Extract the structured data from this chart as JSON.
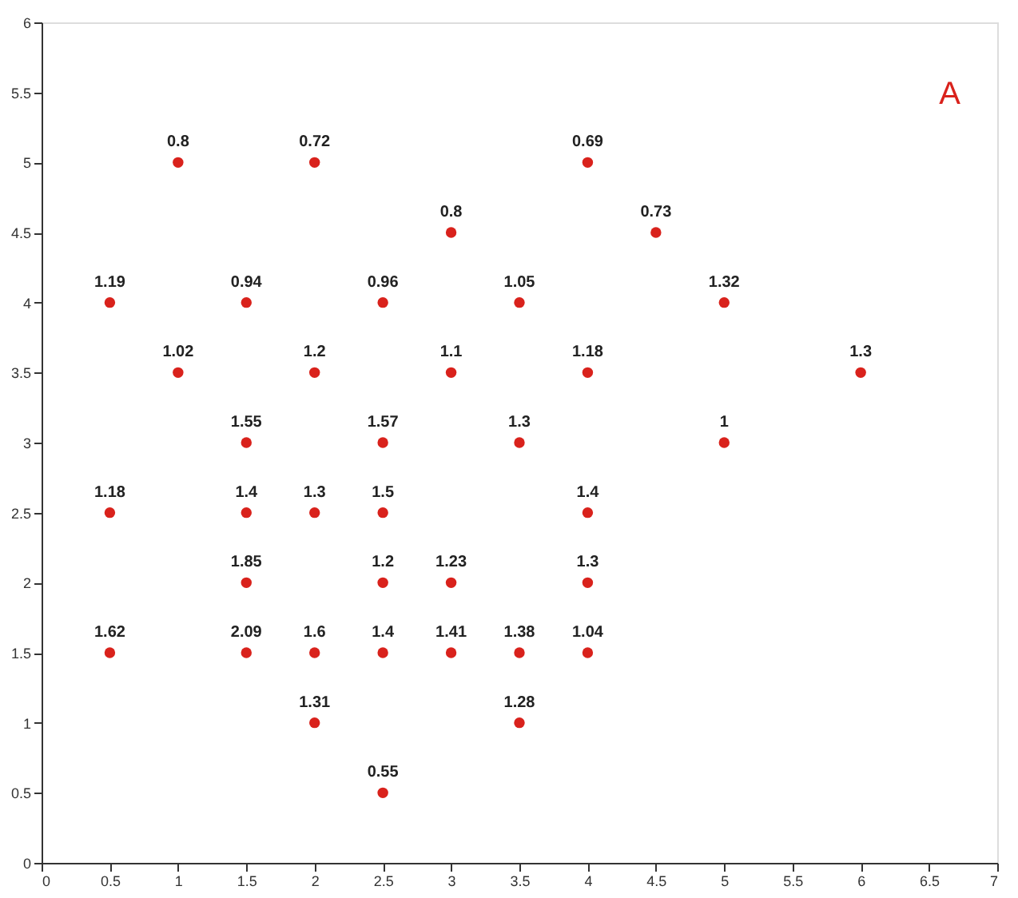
{
  "chart_data": {
    "type": "scatter",
    "x": [
      1,
      2,
      4,
      3,
      4.5,
      0.5,
      1.5,
      2.5,
      3.5,
      5,
      1,
      2,
      3,
      4,
      6,
      1.5,
      2.5,
      3.5,
      5,
      0.5,
      1.5,
      2,
      2.5,
      4,
      1.5,
      2.5,
      3,
      4,
      0.5,
      1.5,
      2,
      2.5,
      3,
      3.5,
      4,
      2,
      3.5,
      2.5
    ],
    "series": [
      {
        "color": "#d9221c",
        "values": [
          5,
          5,
          5,
          4.5,
          4.5,
          4,
          4,
          4,
          4,
          4,
          3.5,
          3.5,
          3.5,
          3.5,
          3.5,
          3,
          3,
          3,
          3,
          2.5,
          2.5,
          2.5,
          2.5,
          2.5,
          2,
          2,
          2,
          2,
          1.5,
          1.5,
          1.5,
          1.5,
          1.5,
          1.5,
          1.5,
          1,
          1,
          0.5
        ]
      }
    ],
    "xlim": [
      0,
      7
    ],
    "xticks": [
      0,
      0.5,
      1,
      1.5,
      2,
      2.5,
      3,
      3.5,
      4,
      4.5,
      5,
      5.5,
      6,
      6.5,
      7
    ],
    "ylim": [
      0,
      6
    ],
    "yticks": [
      0,
      0.5,
      1,
      1.5,
      2,
      2.5,
      3,
      3.5,
      4,
      4.5,
      5,
      5.5,
      6
    ],
    "grid": false,
    "marker": "circle",
    "annotations": [
      "A",
      {
        "text": "0.8",
        "x": 1,
        "y": 5
      },
      {
        "text": "0.72",
        "x": 2,
        "y": 5
      },
      {
        "text": "0.69",
        "x": 4,
        "y": 5
      },
      {
        "text": "0.8",
        "x": 3,
        "y": 4.5
      },
      {
        "text": "0.73",
        "x": 4.5,
        "y": 4.5
      },
      {
        "text": "1.19",
        "x": 0.5,
        "y": 4
      },
      {
        "text": "0.94",
        "x": 1.5,
        "y": 4
      },
      {
        "text": "0.96",
        "x": 2.5,
        "y": 4
      },
      {
        "text": "1.05",
        "x": 3.5,
        "y": 4
      },
      {
        "text": "1.32",
        "x": 5,
        "y": 4
      },
      {
        "text": "1.02",
        "x": 1,
        "y": 3.5
      },
      {
        "text": "1.2",
        "x": 2,
        "y": 3.5
      },
      {
        "text": "1.1",
        "x": 3,
        "y": 3.5
      },
      {
        "text": "1.18",
        "x": 4,
        "y": 3.5
      },
      {
        "text": "1.3",
        "x": 6,
        "y": 3.5
      },
      {
        "text": "1.55",
        "x": 1.5,
        "y": 3
      },
      {
        "text": "1.57",
        "x": 2.5,
        "y": 3
      },
      {
        "text": "1.3",
        "x": 3.5,
        "y": 3
      },
      {
        "text": "1",
        "x": 5,
        "y": 3
      },
      {
        "text": "1.18",
        "x": 0.5,
        "y": 2.5
      },
      {
        "text": "1.4",
        "x": 1.5,
        "y": 2.5
      },
      {
        "text": "1.3",
        "x": 2,
        "y": 2.5
      },
      {
        "text": "1.5",
        "x": 2.5,
        "y": 2.5
      },
      {
        "text": "1.4",
        "x": 4,
        "y": 2.5
      },
      {
        "text": "1.85",
        "x": 1.5,
        "y": 2
      },
      {
        "text": "1.2",
        "x": 2.5,
        "y": 2
      },
      {
        "text": "1.23",
        "x": 3,
        "y": 2
      },
      {
        "text": "1.3",
        "x": 4,
        "y": 2
      },
      {
        "text": "1.62",
        "x": 0.5,
        "y": 1.5
      },
      {
        "text": "2.09",
        "x": 1.5,
        "y": 1.5
      },
      {
        "text": "1.6",
        "x": 2,
        "y": 1.5
      },
      {
        "text": "1.4",
        "x": 2.5,
        "y": 1.5
      },
      {
        "text": "1.41",
        "x": 3,
        "y": 1.5
      },
      {
        "text": "1.38",
        "x": 3.5,
        "y": 1.5
      },
      {
        "text": "1.04",
        "x": 4,
        "y": 1.5
      },
      {
        "text": "1.31",
        "x": 2,
        "y": 1
      },
      {
        "text": "1.28",
        "x": 3.5,
        "y": 1
      },
      {
        "text": "0.55",
        "x": 2.5,
        "y": 0.5
      }
    ]
  }
}
